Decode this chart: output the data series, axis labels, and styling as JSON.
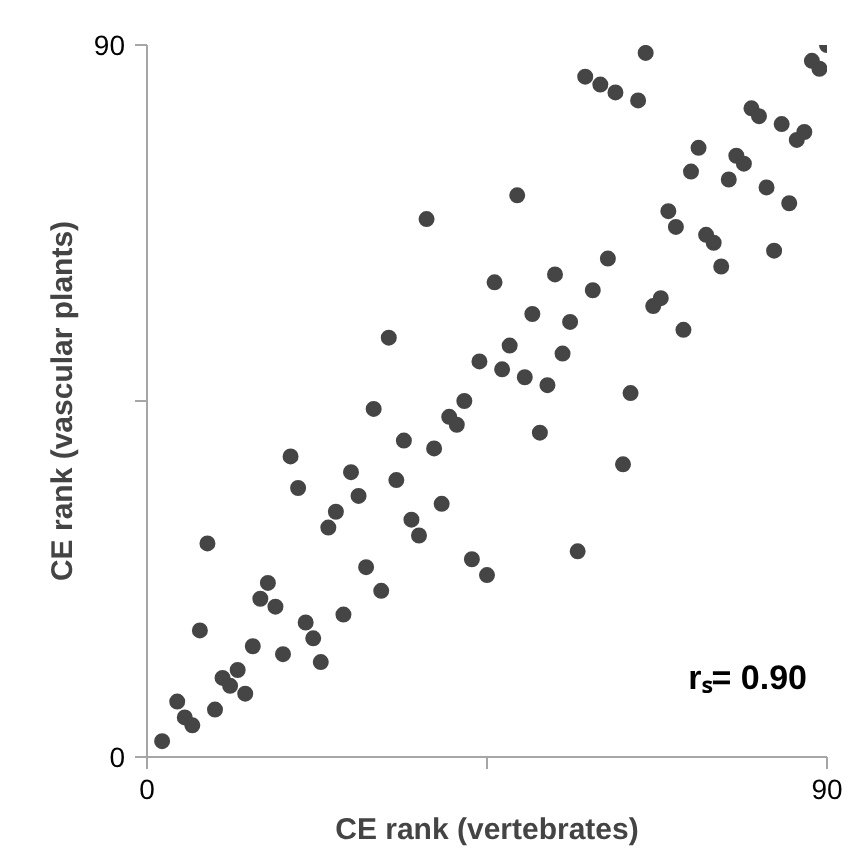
{
  "chart_data": {
    "type": "scatter",
    "xlabel": "CE rank (vertebrates)",
    "ylabel": "CE rank (vascular plants)",
    "annotations": [
      "rₛ= 0.90"
    ],
    "x": [
      2,
      4,
      5,
      6,
      7,
      8,
      9,
      10,
      11,
      12,
      13,
      14,
      15,
      16,
      17,
      18,
      19,
      20,
      21,
      22,
      23,
      24,
      25,
      26,
      27,
      28,
      29,
      30,
      31,
      33,
      34,
      35,
      36,
      38,
      39,
      40,
      41,
      42,
      43,
      37,
      32,
      44,
      53,
      64,
      52,
      63,
      45,
      57,
      66,
      58,
      60,
      62,
      65,
      90,
      88,
      89,
      80,
      81,
      84,
      87,
      86,
      73,
      72,
      78,
      79,
      77,
      82,
      85,
      49,
      69,
      70,
      74,
      75,
      83,
      76,
      61,
      46,
      54,
      59,
      51,
      56,
      68,
      67,
      71,
      48,
      55,
      47,
      50
    ],
    "values": [
      2,
      7,
      5,
      4,
      16,
      27,
      6,
      10,
      9,
      11,
      8,
      14,
      20,
      22,
      19,
      13,
      38,
      34,
      17,
      15,
      12,
      29,
      31,
      18,
      36,
      33,
      24,
      44,
      21,
      35,
      40,
      30,
      28,
      39,
      32,
      43,
      42,
      45,
      25,
      68,
      53,
      50,
      47,
      46,
      41,
      37,
      23,
      26,
      89,
      86,
      85,
      84,
      83,
      90,
      88,
      87,
      82,
      81,
      80,
      79,
      78,
      77,
      74,
      76,
      75,
      73,
      72,
      70,
      71,
      69,
      67,
      66,
      65,
      64,
      62,
      63,
      60,
      61,
      59,
      56,
      55,
      58,
      57,
      54,
      52,
      51,
      49,
      48
    ],
    "color": "#454545",
    "marker": "circle",
    "xlim": [
      0,
      90
    ],
    "ylim": [
      0,
      90
    ],
    "xticks": [
      0,
      {
        "value": 45,
        "label": null
      },
      90
    ],
    "yticks": [
      0,
      {
        "value": 45,
        "label": null
      },
      90
    ],
    "grid": false
  }
}
